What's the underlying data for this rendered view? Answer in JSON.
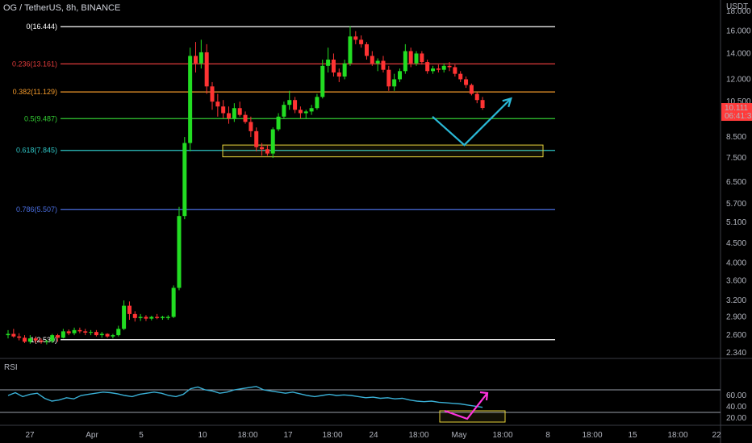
{
  "header": {
    "title": "OG / TetherUS, 8h, BINANCE"
  },
  "price_scale": {
    "unit": "USDT",
    "ticks": [
      "18.000",
      "16.000",
      "14.000",
      "12.000",
      "10.500",
      "8.500",
      "7.500",
      "6.500",
      "5.700",
      "5.100",
      "4.500",
      "4.000",
      "3.600",
      "3.200",
      "2.900",
      "2.600",
      "2.340"
    ]
  },
  "last_price": {
    "value": "10.111",
    "countdown": "06:41:35",
    "color": "#ff3b3b"
  },
  "rsi": {
    "label": "RSI",
    "ticks": [
      "60.00",
      "40.00",
      "20.00"
    ],
    "line_color": "#3ab0d6"
  },
  "time_axis": {
    "ticks": [
      "27",
      "Apr",
      "5",
      "10",
      "18:00",
      "17",
      "18:00",
      "24",
      "18:00",
      "May",
      "18:00",
      "8",
      "18:00",
      "15",
      "18:00",
      "22"
    ]
  },
  "colors": {
    "up": "#22dd22",
    "down": "#ff3333",
    "background": "#000000",
    "arrow_main": "#2ab8d6",
    "arrow_rsi": "#ff33dd",
    "zone": "#e6d23a"
  },
  "chart_data": {
    "type": "candlestick",
    "title": "OG / TetherUS, 8h, BINANCE",
    "y_scale": "log",
    "ylim": [
      2.34,
      19
    ],
    "fib_levels": [
      {
        "label": "0(16.444)",
        "ratio": 0,
        "price": 16.444,
        "color": "#ffffff"
      },
      {
        "label": "0.236(13.161)",
        "ratio": 0.236,
        "price": 13.161,
        "color": "#e03b3b"
      },
      {
        "label": "0.382(11.129)",
        "ratio": 0.382,
        "price": 11.129,
        "color": "#f39a2b"
      },
      {
        "label": "0.5(9.487)",
        "ratio": 0.5,
        "price": 9.487,
        "color": "#33cc33"
      },
      {
        "label": "0.618(7.845)",
        "ratio": 0.618,
        "price": 7.845,
        "color": "#2ec4c4"
      },
      {
        "label": "0.786(5.507)",
        "ratio": 0.786,
        "price": 5.507,
        "color": "#4a6ee0"
      },
      {
        "label": "1(2.530)",
        "ratio": 1,
        "price": 2.53,
        "color": "#ffffff"
      }
    ],
    "zone": {
      "low": 7.55,
      "high": 8.1
    },
    "projection": [
      [
        10.0,
        9.6
      ],
      [
        10.75,
        8.1
      ],
      [
        11.85,
        10.7
      ]
    ],
    "candles": [
      [
        0,
        2.6,
        2.68,
        2.55,
        2.62
      ],
      [
        0.13,
        2.62,
        2.7,
        2.56,
        2.58
      ],
      [
        0.26,
        2.58,
        2.63,
        2.52,
        2.56
      ],
      [
        0.39,
        2.56,
        2.6,
        2.48,
        2.5
      ],
      [
        0.52,
        2.5,
        2.6,
        2.47,
        2.55
      ],
      [
        0.65,
        2.55,
        2.58,
        2.48,
        2.52
      ],
      [
        0.78,
        2.52,
        2.55,
        2.47,
        2.5
      ],
      [
        0.91,
        2.5,
        2.53,
        2.46,
        2.51
      ],
      [
        1.04,
        2.51,
        2.62,
        2.48,
        2.6
      ],
      [
        1.17,
        2.6,
        2.62,
        2.5,
        2.56
      ],
      [
        1.3,
        2.56,
        2.7,
        2.55,
        2.66
      ],
      [
        1.43,
        2.66,
        2.69,
        2.6,
        2.63
      ],
      [
        1.56,
        2.63,
        2.72,
        2.6,
        2.68
      ],
      [
        1.69,
        2.68,
        2.72,
        2.63,
        2.66
      ],
      [
        1.82,
        2.66,
        2.7,
        2.6,
        2.64
      ],
      [
        1.95,
        2.64,
        2.68,
        2.6,
        2.65
      ],
      [
        2.08,
        2.65,
        2.68,
        2.58,
        2.6
      ],
      [
        2.21,
        2.6,
        2.65,
        2.56,
        2.62
      ],
      [
        2.34,
        2.62,
        2.63,
        2.56,
        2.58
      ],
      [
        2.47,
        2.58,
        2.62,
        2.55,
        2.6
      ],
      [
        2.6,
        2.6,
        2.75,
        2.58,
        2.7
      ],
      [
        2.73,
        2.7,
        3.2,
        2.68,
        3.1
      ],
      [
        2.86,
        3.1,
        3.18,
        2.85,
        2.95
      ],
      [
        2.99,
        2.95,
        3,
        2.82,
        2.88
      ],
      [
        3.12,
        2.88,
        2.95,
        2.83,
        2.9
      ],
      [
        3.25,
        2.9,
        2.93,
        2.83,
        2.87
      ],
      [
        3.38,
        2.87,
        2.92,
        2.84,
        2.9
      ],
      [
        3.51,
        2.9,
        2.95,
        2.86,
        2.88
      ],
      [
        3.64,
        2.88,
        2.92,
        2.85,
        2.9
      ],
      [
        3.77,
        2.88,
        2.93,
        2.85,
        2.9
      ],
      [
        3.9,
        2.9,
        3.5,
        2.88,
        3.45
      ],
      [
        4.03,
        3.45,
        5.6,
        3.4,
        5.3
      ],
      [
        4.16,
        5.3,
        8.5,
        5.2,
        8.2
      ],
      [
        4.29,
        8.2,
        14.5,
        7.8,
        13.8
      ],
      [
        4.42,
        13.8,
        15,
        12.5,
        13.2
      ],
      [
        4.55,
        13.2,
        15.2,
        12.8,
        14.1
      ],
      [
        4.68,
        14.1,
        14.8,
        11,
        11.5
      ],
      [
        4.81,
        11.5,
        11.8,
        10,
        10.5
      ],
      [
        4.94,
        10.5,
        11,
        9.6,
        10.2
      ],
      [
        5.07,
        10.2,
        10.6,
        9.5,
        9.8
      ],
      [
        5.2,
        9.8,
        10.2,
        9.2,
        9.5
      ],
      [
        5.33,
        9.5,
        10.4,
        9.3,
        10.1
      ],
      [
        5.46,
        10.1,
        10.5,
        9.6,
        9.7
      ],
      [
        5.59,
        9.7,
        9.9,
        9.2,
        9.3
      ],
      [
        5.72,
        9.3,
        9.6,
        8.5,
        8.8
      ],
      [
        5.85,
        8.8,
        9,
        7.8,
        8
      ],
      [
        5.98,
        8,
        8.2,
        7.6,
        7.9
      ],
      [
        6.11,
        7.9,
        8.1,
        7.6,
        7.7
      ],
      [
        6.24,
        7.7,
        9,
        7.5,
        8.9
      ],
      [
        6.37,
        8.9,
        9.8,
        8.8,
        9.6
      ],
      [
        6.5,
        9.6,
        10.5,
        9.5,
        10.3
      ],
      [
        6.63,
        10.3,
        11.2,
        10,
        10.6
      ],
      [
        6.76,
        10.6,
        10.8,
        9.8,
        10
      ],
      [
        6.89,
        10,
        10.2,
        9.5,
        9.8
      ],
      [
        7.02,
        9.8,
        10,
        9.5,
        9.9
      ],
      [
        7.15,
        9.9,
        10.3,
        9.7,
        10.1
      ],
      [
        7.28,
        10.1,
        11,
        10,
        10.8
      ],
      [
        7.41,
        10.8,
        13.5,
        10.7,
        13
      ],
      [
        7.54,
        13,
        14.5,
        12.5,
        13.5
      ],
      [
        7.67,
        13.5,
        14,
        12.2,
        12.5
      ],
      [
        7.8,
        12.5,
        12.8,
        11.8,
        12.2
      ],
      [
        7.93,
        12.2,
        13.5,
        12,
        13.2
      ],
      [
        8.06,
        13.2,
        16.5,
        13,
        15.5
      ],
      [
        8.19,
        15.5,
        16,
        14.8,
        15.2
      ],
      [
        8.32,
        15.2,
        15.6,
        14.5,
        14.8
      ],
      [
        8.45,
        14.8,
        15,
        13.5,
        13.8
      ],
      [
        8.58,
        13.8,
        14.2,
        13,
        13.2
      ],
      [
        8.71,
        13.2,
        13.6,
        12.6,
        13.4
      ],
      [
        8.84,
        13.4,
        13.8,
        12.5,
        12.7
      ],
      [
        8.97,
        12.7,
        13,
        11.2,
        11.5
      ],
      [
        9.1,
        11.5,
        12.4,
        11.2,
        12
      ],
      [
        9.23,
        12,
        12.8,
        11.8,
        12.6
      ],
      [
        9.36,
        12.6,
        14.8,
        12.4,
        14.2
      ],
      [
        9.49,
        14.2,
        14.5,
        12.9,
        13.2
      ],
      [
        9.62,
        13.2,
        14.2,
        13,
        14
      ],
      [
        9.75,
        14,
        14.2,
        13.1,
        13.3
      ],
      [
        9.88,
        13.3,
        13.5,
        12.4,
        12.6
      ],
      [
        10.01,
        12.6,
        13,
        12.4,
        12.8
      ],
      [
        10.14,
        12.8,
        13.1,
        12.5,
        12.7
      ],
      [
        10.27,
        12.7,
        13.2,
        12.5,
        13
      ],
      [
        10.4,
        13,
        13.3,
        12.6,
        12.9
      ],
      [
        10.53,
        12.9,
        13.1,
        12.2,
        12.4
      ],
      [
        10.66,
        12.4,
        12.6,
        11.8,
        12
      ],
      [
        10.79,
        12,
        12.2,
        11.4,
        11.6
      ],
      [
        10.92,
        11.6,
        11.7,
        10.9,
        11
      ],
      [
        11.05,
        11,
        11.1,
        10.4,
        10.6
      ],
      [
        11.18,
        10.6,
        10.8,
        10,
        10.111
      ]
    ],
    "rsi_values": [
      60,
      65,
      58,
      62,
      64,
      55,
      50,
      52,
      56,
      54,
      60,
      62,
      64,
      66,
      65,
      63,
      60,
      58,
      62,
      64,
      66,
      64,
      60,
      58,
      62,
      72,
      75,
      70,
      68,
      64,
      66,
      70,
      72,
      74,
      76,
      70,
      68,
      66,
      64,
      66,
      63,
      60,
      58,
      60,
      62,
      60,
      61,
      60,
      58,
      56,
      57,
      55,
      56,
      54,
      55,
      52,
      50,
      49,
      50,
      48,
      47,
      46,
      45,
      43,
      41,
      39
    ]
  }
}
